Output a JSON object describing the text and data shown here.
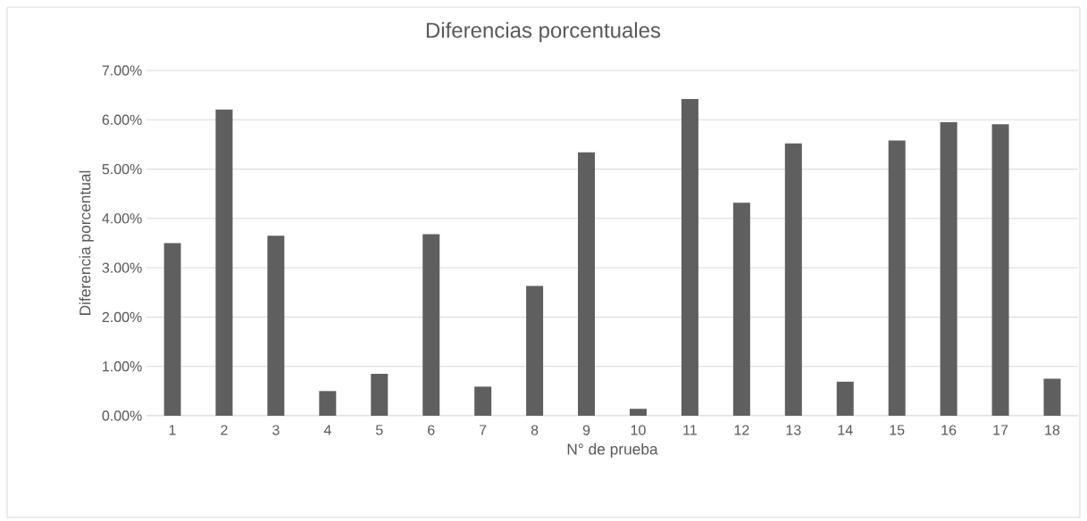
{
  "chart_data": {
    "type": "bar",
    "title": "Diferencias porcentuales",
    "xlabel": "N° de prueba",
    "ylabel": "Diferencia porcentual",
    "categories": [
      "1",
      "2",
      "3",
      "4",
      "5",
      "6",
      "7",
      "8",
      "9",
      "10",
      "11",
      "12",
      "13",
      "14",
      "15",
      "16",
      "17",
      "18"
    ],
    "values": [
      3.5,
      6.21,
      3.65,
      0.5,
      0.85,
      3.68,
      0.59,
      2.63,
      5.34,
      0.14,
      6.42,
      4.32,
      5.52,
      0.69,
      5.58,
      5.95,
      5.91,
      0.75
    ],
    "color": "#5f5f5f",
    "ylim": [
      0,
      7
    ],
    "yticks": [
      {
        "value": 0,
        "label": "0.00%"
      },
      {
        "value": 1,
        "label": "1.00%"
      },
      {
        "value": 2,
        "label": "2.00%"
      },
      {
        "value": 3,
        "label": "3.00%"
      },
      {
        "value": 4,
        "label": "4.00%"
      },
      {
        "value": 5,
        "label": "5.00%"
      },
      {
        "value": 6,
        "label": "6.00%"
      },
      {
        "value": 7,
        "label": "7.00%"
      }
    ],
    "grid": "y"
  }
}
